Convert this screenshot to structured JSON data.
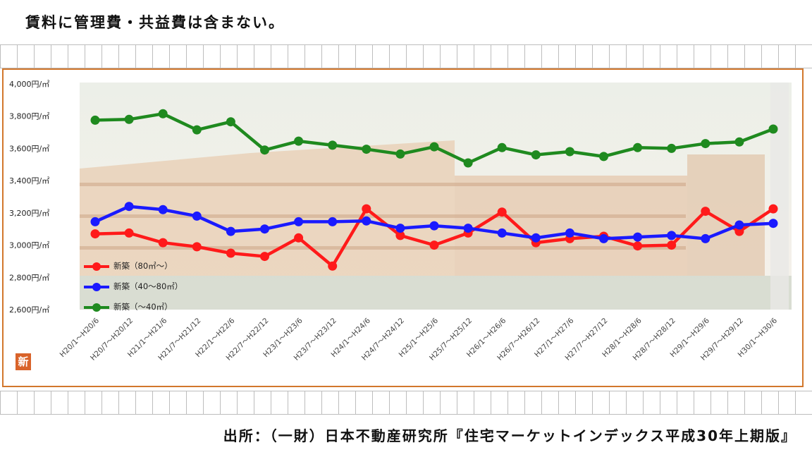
{
  "header": {
    "note": "賃料に管理費・共益費は含まない。"
  },
  "footer": {
    "source": "出所：（一財）日本不動産研究所『住宅マーケットインデックス平成30年上期版』"
  },
  "logo": {
    "text": "新"
  },
  "chart_data": {
    "type": "line",
    "title": "",
    "xlabel": "",
    "ylabel": "",
    "ylim": [
      2600,
      4000
    ],
    "yticks": [
      2600,
      2800,
      3000,
      3200,
      3400,
      3600,
      3800,
      4000
    ],
    "ytick_labels": [
      "2,600円/㎡",
      "2,800円/㎡",
      "3,000円/㎡",
      "3,200円/㎡",
      "3,400円/㎡",
      "3,600円/㎡",
      "3,800円/㎡",
      "4,000円/㎡"
    ],
    "categories": [
      "H20/1～H20/6",
      "H20/7～H20/12",
      "H21/1～H21/6",
      "H21/7～H21/12",
      "H22/1～H22/6",
      "H22/7～H22/12",
      "H23/1～H23/6",
      "H23/7～H23/12",
      "H24/1～H24/6",
      "H24/7～H24/12",
      "H25/1～H25/6",
      "H25/7～H25/12",
      "H26/1～H26/6",
      "H26/7～H26/12",
      "H27/1～H27/6",
      "H27/7～H27/12",
      "H28/1～H28/6",
      "H28/7～H28/12",
      "H29/1～H29/6",
      "H29/7～H29/12",
      "H30/1～H30/6"
    ],
    "legend_position": "bottom-left",
    "grid": false,
    "series": [
      {
        "name": "新築（80㎡～）",
        "color": "#ff1a1a",
        "values": [
          3070,
          3075,
          3015,
          2990,
          2950,
          2930,
          3045,
          2870,
          3225,
          3060,
          3000,
          3075,
          3205,
          3015,
          3040,
          3055,
          2995,
          3000,
          3210,
          3085,
          3225
        ]
      },
      {
        "name": "新築（40～80㎡）",
        "color": "#1a1aff",
        "values": [
          3145,
          3240,
          3220,
          3180,
          3085,
          3100,
          3145,
          3145,
          3150,
          3105,
          3120,
          3105,
          3075,
          3045,
          3075,
          3040,
          3050,
          3060,
          3040,
          3125,
          3135
        ]
      },
      {
        "name": "新築（～40㎡）",
        "color": "#1f8a1f",
        "values": [
          3775,
          3780,
          3815,
          3715,
          3765,
          3590,
          3645,
          3620,
          3595,
          3565,
          3610,
          3510,
          3605,
          3560,
          3580,
          3550,
          3605,
          3600,
          3630,
          3640,
          3720
        ]
      }
    ]
  }
}
